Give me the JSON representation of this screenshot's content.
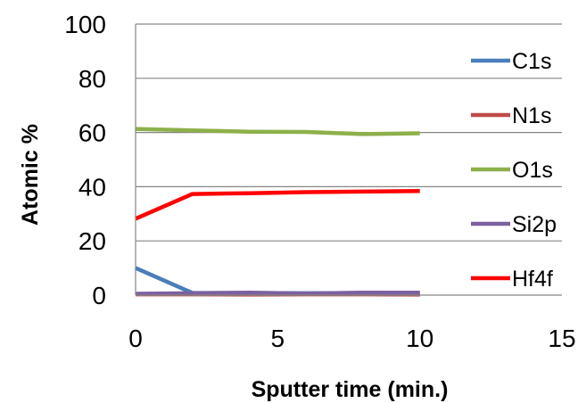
{
  "chart_data": {
    "type": "line",
    "title": "",
    "xlabel": "Sputter time (min.)",
    "ylabel": "Atomic %",
    "xlim": [
      0,
      15
    ],
    "ylim": [
      0,
      100
    ],
    "xticks": [
      0,
      5,
      10,
      15
    ],
    "yticks": [
      0,
      20,
      40,
      60,
      80,
      100
    ],
    "grid": "horizontal",
    "legend_position": "right",
    "series": [
      {
        "name": "C1s",
        "color": "#4a7ebb",
        "x": [
          0,
          2,
          4,
          6,
          8,
          10
        ],
        "y": [
          10,
          0.8,
          0.8,
          0.7,
          0.8,
          0.8
        ]
      },
      {
        "name": "N1s",
        "color": "#be4b48",
        "x": [
          0,
          2,
          4,
          6,
          8,
          10
        ],
        "y": [
          0.3,
          0.3,
          0.2,
          0.3,
          0.3,
          0.2
        ]
      },
      {
        "name": "O1s",
        "color": "#8db04a",
        "x": [
          0,
          2,
          4,
          6,
          8,
          10
        ],
        "y": [
          61.3,
          60.8,
          60.3,
          60.2,
          59.4,
          59.7
        ]
      },
      {
        "name": "Si2p",
        "color": "#7d60a0",
        "x": [
          0,
          2,
          4,
          6,
          8,
          10
        ],
        "y": [
          0.5,
          0.7,
          0.9,
          0.6,
          0.9,
          0.9
        ]
      },
      {
        "name": "Hf4f",
        "color": "#ff0000",
        "x": [
          0,
          2,
          4,
          6,
          8,
          10
        ],
        "y": [
          28.2,
          37.3,
          37.6,
          38.0,
          38.2,
          38.4
        ]
      }
    ]
  }
}
